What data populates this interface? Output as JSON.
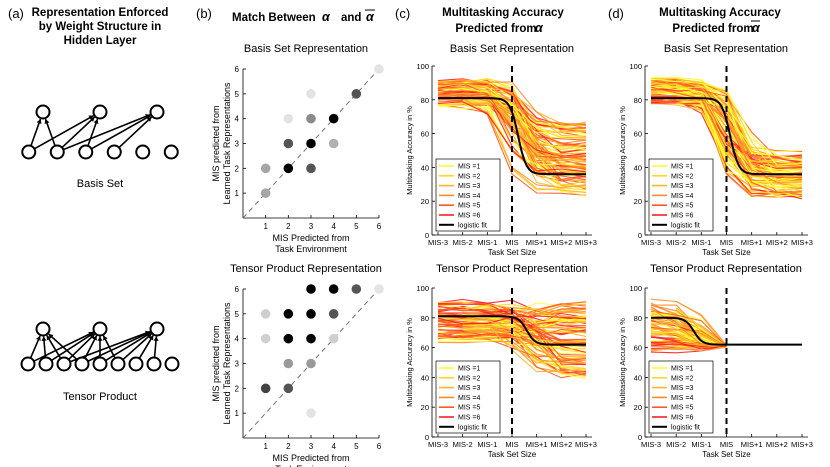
{
  "panel_labels": [
    "(a)",
    "(b)",
    "(c)",
    "(d)"
  ],
  "panel_a": {
    "title_lines": [
      "Representation Enforced",
      "by Weight Structure in",
      "Hidden Layer"
    ],
    "labels": [
      "Basis Set",
      "Tensor Product"
    ]
  },
  "panel_b": {
    "title": "Match Between",
    "alpha_symbol": "α",
    "conjunction": "and",
    "alpha_bar_symbol": "α"
  },
  "panel_c": {
    "title_lines": [
      "Multitasking Accuracy",
      "Predicted from"
    ],
    "symbol": "α"
  },
  "panel_d": {
    "title_lines": [
      "Multitasking Accuracy",
      "Predicted from"
    ],
    "symbol": "α"
  },
  "row_titles": [
    "Basis Set Representation",
    "Tensor Product Representation"
  ],
  "scatter_axes": {
    "xlabel_lines": [
      "MIS Predicted from",
      "Task Environment"
    ],
    "ylabel_lines": [
      "MIS predicted from",
      "Learned Task Representations"
    ],
    "ticks": [
      1,
      2,
      3,
      4,
      5,
      6
    ]
  },
  "line_axes": {
    "xlabel": "Task Set Size",
    "ylabel": "Multitasking Accuracy in %",
    "xticks": [
      "MIS-3",
      "MIS-2",
      "MIS-1",
      "MIS",
      "MIS+1",
      "MIS+2",
      "MIS+3"
    ],
    "yticks": [
      0,
      20,
      40,
      60,
      80,
      100
    ]
  },
  "legend": {
    "entries": [
      "MIS =1",
      "MIS =2",
      "MIS =3",
      "MIS =4",
      "MIS =5",
      "MIS =6",
      "logistic fit"
    ],
    "colors": [
      "#ffff33",
      "#ffd52a",
      "#ffb429",
      "#ff8c2a",
      "#ff5a26",
      "#ff2020",
      "#000000"
    ]
  },
  "chart_data": [
    {
      "type": "scatter",
      "title": "Basis Set Representation",
      "xlabel": "MIS Predicted from Task Environment",
      "ylabel": "MIS predicted from Learned Task Representations",
      "xlim": [
        0,
        6
      ],
      "ylim": [
        0,
        6
      ],
      "diagonal": true,
      "points": [
        {
          "x": 1,
          "y": 1,
          "shade": "#a6a6a6"
        },
        {
          "x": 1,
          "y": 2,
          "shade": "#a6a6a6"
        },
        {
          "x": 2,
          "y": 2,
          "shade": "#000000"
        },
        {
          "x": 2,
          "y": 3,
          "shade": "#555555"
        },
        {
          "x": 2,
          "y": 4,
          "shade": "#e3e3e3"
        },
        {
          "x": 3,
          "y": 2,
          "shade": "#555555"
        },
        {
          "x": 3,
          "y": 3,
          "shade": "#000000"
        },
        {
          "x": 3,
          "y": 4,
          "shade": "#8a8a8a"
        },
        {
          "x": 3,
          "y": 5,
          "shade": "#e3e3e3"
        },
        {
          "x": 4,
          "y": 3,
          "shade": "#b0b0b0"
        },
        {
          "x": 4,
          "y": 4,
          "shade": "#000000"
        },
        {
          "x": 5,
          "y": 5,
          "shade": "#555555"
        },
        {
          "x": 6,
          "y": 6,
          "shade": "#e3e3e3"
        }
      ]
    },
    {
      "type": "scatter",
      "title": "Tensor Product Representation",
      "xlabel": "MIS Predicted from Task Environment",
      "ylabel": "MIS predicted from Learned Task Representations",
      "xlim": [
        0,
        6
      ],
      "ylim": [
        0,
        6
      ],
      "diagonal": true,
      "points": [
        {
          "x": 1,
          "y": 2,
          "shade": "#444444"
        },
        {
          "x": 1,
          "y": 4,
          "shade": "#cfcfcf"
        },
        {
          "x": 1,
          "y": 5,
          "shade": "#cfcfcf"
        },
        {
          "x": 2,
          "y": 2,
          "shade": "#555555"
        },
        {
          "x": 2,
          "y": 3,
          "shade": "#9a9a9a"
        },
        {
          "x": 2,
          "y": 4,
          "shade": "#000000"
        },
        {
          "x": 2,
          "y": 5,
          "shade": "#000000"
        },
        {
          "x": 3,
          "y": 1,
          "shade": "#e3e3e3"
        },
        {
          "x": 3,
          "y": 3,
          "shade": "#9a9a9a"
        },
        {
          "x": 3,
          "y": 4,
          "shade": "#000000"
        },
        {
          "x": 3,
          "y": 5,
          "shade": "#000000"
        },
        {
          "x": 3,
          "y": 6,
          "shade": "#000000"
        },
        {
          "x": 4,
          "y": 4,
          "shade": "#cfcfcf"
        },
        {
          "x": 4,
          "y": 5,
          "shade": "#555555"
        },
        {
          "x": 4,
          "y": 6,
          "shade": "#000000"
        },
        {
          "x": 5,
          "y": 6,
          "shade": "#555555"
        },
        {
          "x": 6,
          "y": 6,
          "shade": "#e3e3e3"
        }
      ]
    },
    {
      "type": "line",
      "title": "Basis Set Representation",
      "xlabel": "Task Set Size",
      "ylabel": "Multitasking Accuracy in %",
      "ylim": [
        0,
        100
      ],
      "vline_at": "MIS",
      "fit": {
        "label": "logistic fit",
        "left": 81,
        "right": 36,
        "midpoint": 0.25
      },
      "series_ranges": {
        "left": [
          70,
          92
        ],
        "right": [
          22,
          66
        ]
      },
      "seed": 11
    },
    {
      "type": "line",
      "title": "Basis Set Representation",
      "xlabel": "Task Set Size",
      "ylabel": "Multitasking Accuracy in %",
      "ylim": [
        0,
        100
      ],
      "vline_at": "MIS",
      "fit": {
        "label": "logistic fit",
        "left": 81,
        "right": 36,
        "midpoint": 0.15
      },
      "series_ranges": {
        "left": [
          72,
          92
        ],
        "right": [
          22,
          48
        ]
      },
      "seed": 23
    },
    {
      "type": "line",
      "title": "Tensor Product Representation",
      "xlabel": "Task Set Size",
      "ylabel": "Multitasking Accuracy in %",
      "ylim": [
        0,
        100
      ],
      "vline_at": "MIS",
      "fit": {
        "label": "logistic fit",
        "left": 81,
        "right": 62,
        "midpoint": 0.6
      },
      "series_ranges": {
        "left": [
          52,
          92
        ],
        "right": [
          40,
          90
        ]
      },
      "seed": 37
    },
    {
      "type": "line",
      "title": "Tensor Product Representation",
      "xlabel": "Task Set Size",
      "ylabel": "Multitasking Accuracy in %",
      "ylim": [
        0,
        100
      ],
      "vline_at": "MIS",
      "fit": {
        "label": "logistic fit",
        "left": 80,
        "right": 62,
        "midpoint": -1.3
      },
      "series_ranges": {
        "left": [
          42,
          92
        ],
        "right": [
          60,
          62
        ]
      },
      "truncate_right": true,
      "seed": 53
    }
  ]
}
